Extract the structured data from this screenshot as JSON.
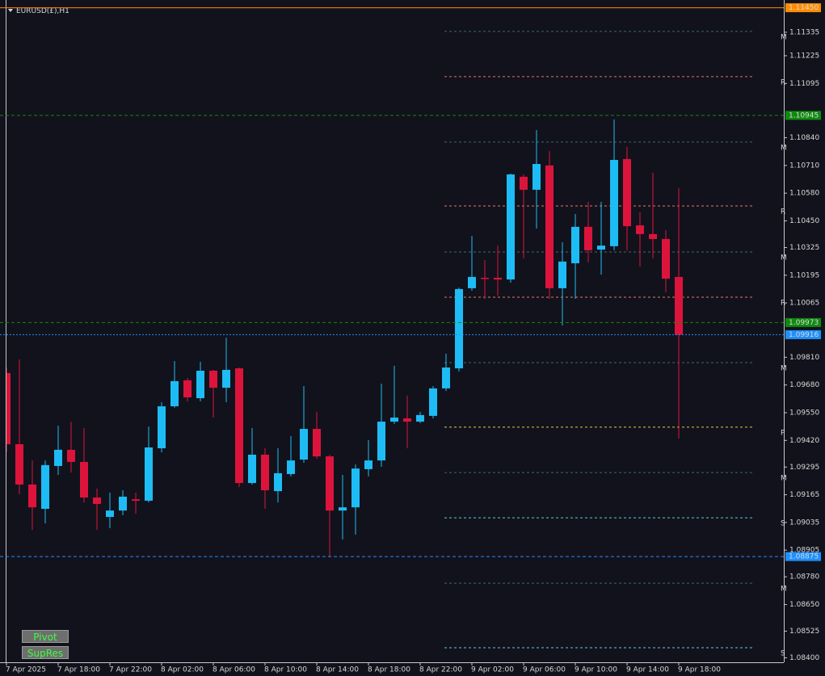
{
  "chart_data": {
    "type": "candlestick",
    "title": "EURUSD(£),H1",
    "categories": [
      "7 Apr 2025",
      null,
      null,
      null,
      "7 Apr 18:00",
      null,
      null,
      null,
      "7 Apr 22:00",
      null,
      null,
      null,
      "8 Apr 02:00",
      null,
      null,
      null,
      "8 Apr 06:00",
      null,
      null,
      null,
      "8 Apr 10:00",
      null,
      null,
      null,
      "8 Apr 14:00",
      null,
      null,
      null,
      "8 Apr 18:00",
      null,
      null,
      null,
      "8 Apr 22:00",
      null,
      null,
      null,
      "9 Apr 02:00",
      null,
      null,
      null,
      "9 Apr 06:00",
      null,
      null,
      null,
      "9 Apr 10:00",
      null,
      null,
      null,
      "9 Apr 14:00",
      null,
      null,
      null,
      "9 Apr 18:00"
    ],
    "open": [
      1.09736,
      1.09402,
      1.09213,
      1.09099,
      1.093,
      1.09376,
      1.09319,
      1.09152,
      1.09061,
      1.09091,
      1.09144,
      1.09137,
      1.09383,
      1.0958,
      1.09702,
      1.09618,
      1.09747,
      1.09667,
      1.09758,
      1.0922,
      1.09353,
      1.09182,
      1.09262,
      1.0933,
      1.09474,
      1.09345,
      1.09091,
      1.09106,
      1.09285,
      1.09326,
      1.09508,
      1.09523,
      1.09508,
      1.09535,
      1.09664,
      1.09758,
      1.10134,
      1.10183,
      1.10183,
      1.10175,
      1.10657,
      1.10596,
      1.1071,
      1.10134,
      1.10251,
      1.10422,
      1.10315,
      1.10331,
      1.1074,
      1.10429,
      1.10388,
      1.10365,
      1.10187
    ],
    "high": [
      1.09762,
      1.098,
      1.09326,
      1.09326,
      1.09489,
      1.09508,
      1.09478,
      1.09194,
      1.09175,
      1.09186,
      1.09175,
      1.09485,
      1.09599,
      1.09792,
      1.09713,
      1.09789,
      1.09751,
      1.09902,
      1.09762,
      1.09478,
      1.09383,
      1.09383,
      1.0944,
      1.09675,
      1.09554,
      1.09353,
      1.09258,
      1.09307,
      1.09421,
      1.09686,
      1.0977,
      1.0963,
      1.09554,
      1.09675,
      1.09827,
      1.10137,
      1.1038,
      1.10266,
      1.10334,
      1.10672,
      1.10668,
      1.10876,
      1.10778,
      1.1035,
      1.10482,
      1.10539,
      1.10539,
      1.10926,
      1.10797,
      1.1049,
      1.10676,
      1.10406,
      1.10604
    ],
    "low": [
      1.09364,
      1.09167,
      1.09,
      1.09031,
      1.09258,
      1.09269,
      1.09129,
      1.09,
      1.09008,
      1.09069,
      1.09076,
      1.09129,
      1.09364,
      1.09573,
      1.09603,
      1.09603,
      1.09527,
      1.09599,
      1.09201,
      1.09213,
      1.09099,
      1.09129,
      1.09251,
      1.09315,
      1.09334,
      1.08872,
      1.08955,
      1.08978,
      1.09251,
      1.09296,
      1.09497,
      1.09383,
      1.09501,
      1.09523,
      1.09652,
      1.09743,
      1.10122,
      1.10084,
      1.10099,
      1.1016,
      1.10274,
      1.10414,
      1.10084,
      1.09959,
      1.10084,
      1.10255,
      1.10198,
      1.10312,
      1.10312,
      1.10236,
      1.10274,
      1.10115,
      1.09429
    ],
    "close": [
      1.09402,
      1.09213,
      1.09106,
      1.09304,
      1.09376,
      1.09319,
      1.09152,
      1.09122,
      1.09091,
      1.09156,
      1.09137,
      1.09387,
      1.0958,
      1.09698,
      1.09622,
      1.09747,
      1.09667,
      1.09751,
      1.0922,
      1.09353,
      1.09186,
      1.09266,
      1.09326,
      1.09474,
      1.09345,
      1.09091,
      1.09106,
      1.09288,
      1.09326,
      1.09508,
      1.09527,
      1.09508,
      1.09539,
      1.09664,
      1.09762,
      1.1013,
      1.10187,
      1.10179,
      1.10175,
      1.10668,
      1.10596,
      1.10717,
      1.10134,
      1.10259,
      1.10422,
      1.10312,
      1.10334,
      1.10736,
      1.10425,
      1.10388,
      1.10365,
      1.10179,
      1.09916
    ],
    "up_color": "#1ebcf5",
    "down_color": "#dc143c",
    "ylim": [
      1.08379,
      1.11456
    ],
    "yticks": [
      1.11335,
      1.11225,
      1.11095,
      {
        "value": 1.1084,
        "label": "1.10840"
      },
      {
        "value": 1.1071,
        "label": "1.10710"
      },
      {
        "value": 1.1058,
        "label": "1.10580"
      },
      {
        "value": 1.1045,
        "label": "1.10450"
      },
      1.10325,
      1.10195,
      1.10065,
      {
        "value": 1.0981,
        "label": "1.09810"
      },
      {
        "value": 1.0968,
        "label": "1.09680"
      },
      {
        "value": 1.0955,
        "label": "1.09550"
      },
      {
        "value": 1.0942,
        "label": "1.09420"
      },
      1.09295,
      1.09165,
      1.09035,
      1.08905,
      {
        "value": 1.0878,
        "label": "1.08780"
      },
      {
        "value": 1.0865,
        "label": "1.08650"
      },
      1.08525,
      {
        "value": 1.084,
        "label": "1.08400"
      }
    ],
    "levels": [
      {
        "value": 1.1145,
        "label": "1.11450",
        "color": "#ff8c00"
      },
      {
        "value": 1.10945,
        "label": "1.10945",
        "color": "#0f8a0f"
      },
      {
        "value": 1.09973,
        "label": "1.09973",
        "color": "#0f8a0f"
      },
      {
        "value": 1.09916,
        "label": "1.09916",
        "color": "#1e90ff"
      },
      {
        "value": 1.08875,
        "label": "1.08875",
        "color": "#1e90ff"
      }
    ],
    "pivot_levels": [
      {
        "value": 1.11339,
        "name": "M",
        "color": "#3f6a6a"
      },
      {
        "value": 1.11127,
        "name": "R",
        "color": "#e07a5f"
      },
      {
        "value": 1.1082,
        "name": "M",
        "color": "#3f6a6a"
      },
      {
        "value": 1.1052,
        "name": "R",
        "color": "#e07a5f"
      },
      {
        "value": 1.10304,
        "name": "M",
        "color": "#3f6a6a"
      },
      {
        "value": 1.10092,
        "name": "R",
        "color": "#e07a5f"
      },
      {
        "value": 1.09785,
        "name": "M",
        "color": "#3f6a6a"
      },
      {
        "value": 1.09482,
        "name": "P",
        "color": "#e8c84a"
      },
      {
        "value": 1.09269,
        "name": "M",
        "color": "#3f6a6a"
      },
      {
        "value": 1.09057,
        "name": "S",
        "color": "#5fc8e0"
      },
      {
        "value": 1.0875,
        "name": "M",
        "color": "#3f6a6a"
      },
      {
        "value": 1.08447,
        "name": "S",
        "color": "#5fc8e0"
      }
    ]
  },
  "buttons": [
    "Pivot",
    "SupRes"
  ]
}
